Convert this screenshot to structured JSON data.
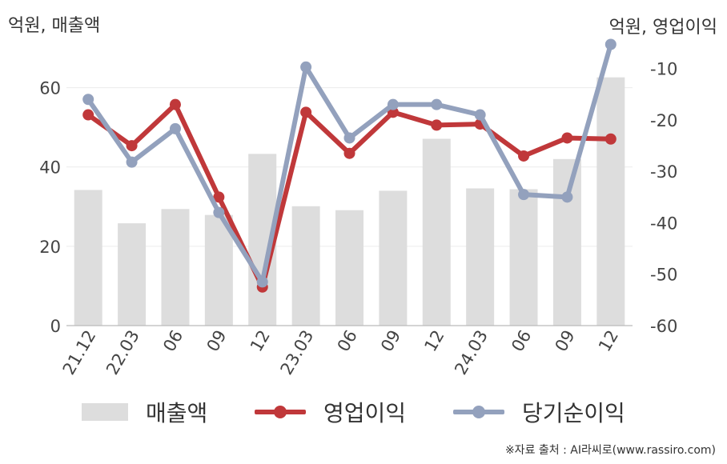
{
  "chart_data": {
    "type": "bar+line",
    "categories": [
      "21.12",
      "22.03",
      "06",
      "09",
      "12",
      "23.03",
      "06",
      "09",
      "12",
      "24.03",
      "06",
      "09",
      "12"
    ],
    "series": [
      {
        "name": "매출액",
        "type": "bar",
        "axis": "left",
        "color": "#dddddd",
        "values": [
          34.2,
          25.8,
          29.4,
          27.9,
          43.3,
          30.1,
          29.1,
          34.0,
          47.1,
          34.6,
          34.4,
          42.0,
          62.6
        ]
      },
      {
        "name": "영업이익",
        "type": "line",
        "axis": "right",
        "color": "#c0383a",
        "values": [
          -19.0,
          -25.0,
          -17.0,
          -35.0,
          -52.5,
          -18.5,
          -26.5,
          -18.5,
          -21.0,
          -20.8,
          -27.0,
          -23.5,
          -23.7
        ]
      },
      {
        "name": "당기순이익",
        "type": "line",
        "axis": "right",
        "color": "#93a1bd",
        "values": [
          -16.0,
          -28.2,
          -21.7,
          -38.0,
          -51.5,
          -9.7,
          -23.5,
          -17.0,
          -17.0,
          -19.0,
          -34.5,
          -35.0,
          -5.3
        ]
      }
    ],
    "left_axis": {
      "label": "억원, 매출액",
      "ylim": [
        0,
        70
      ],
      "ticks": [
        0,
        20,
        40,
        60
      ]
    },
    "right_axis": {
      "label": "억원, 영업이익",
      "ylim": [
        -60,
        -6
      ],
      "ticks": [
        -60,
        -50,
        -40,
        -30,
        -20,
        -10
      ]
    },
    "grid": true,
    "legend_position": "bottom"
  },
  "source": "※자료 출처 : AI라씨로(www.rassiro.com)"
}
